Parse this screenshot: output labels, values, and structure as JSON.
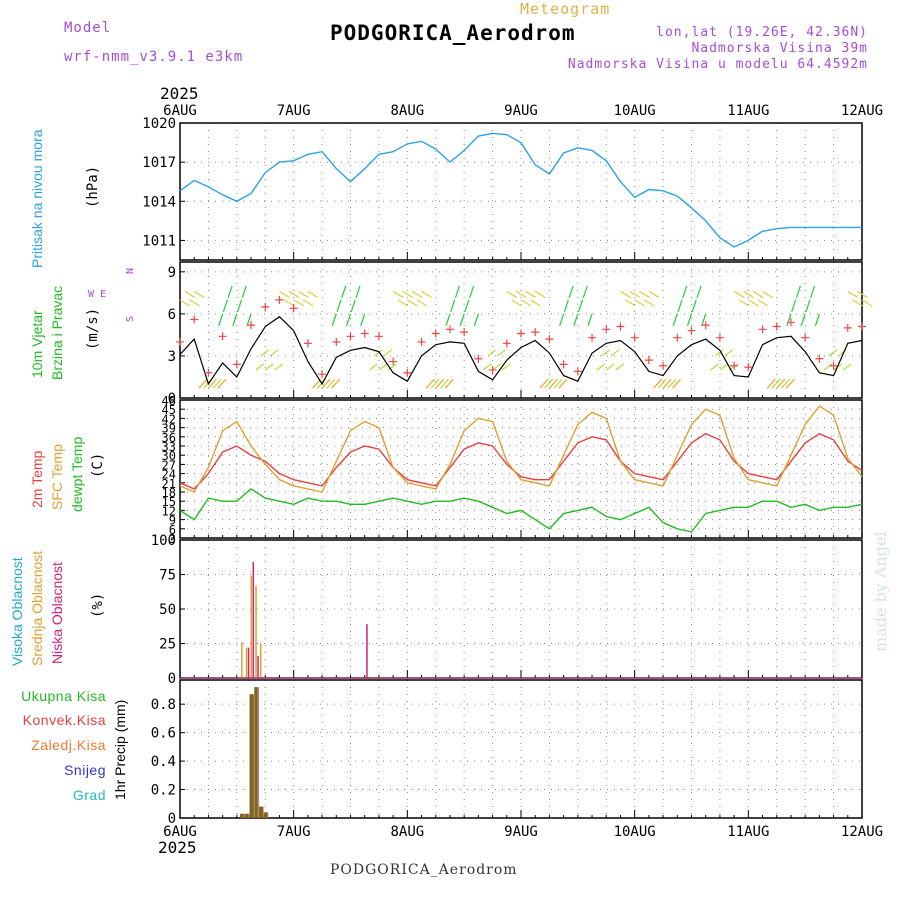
{
  "header": {
    "model_label": "Model",
    "model_name": "wrf-nmm_v3.9.1 e3km",
    "title": "Meteogram",
    "station": "PODGORICA_Aerodrom",
    "lonlat": "lon,lat (19.26E, 42.36N)",
    "elevation": "Nadmorska Visina 39m",
    "model_elevation": "Nadmorska Visina u modelu 64.4592m",
    "year": "2025",
    "footer_station": "PODGORICA_Aerodrom",
    "credit": "made by Angel"
  },
  "colors": {
    "pressure": "#2aa3e6",
    "wind_speed": "#000000",
    "wind_gust": "#f04545",
    "temp_2m": "#e84040",
    "temp_sfc": "#e0a030",
    "dewpt": "#22bb22",
    "cloud_high": "#22aacc",
    "cloud_mid": "#e0a030",
    "cloud_low": "#cc2277",
    "rain_total": "#228b22",
    "rain_conv": "#e84040",
    "rain_frozen": "#f07830",
    "snow": "#3333cc",
    "grad": "#22bbbb"
  },
  "chart_data": [
    {
      "type": "line",
      "panel": "pressure",
      "ylabel": "Pritisak na nivou mora",
      "unit": "(hPa)",
      "ylim": [
        1009.5,
        1020
      ],
      "yticks": [
        1011,
        1014,
        1017,
        1020
      ],
      "x_labels": [
        "6AUG",
        "7AUG",
        "8AUG",
        "9AUG",
        "10AUG",
        "11AUG",
        "12AUG"
      ],
      "x_hours": [
        0,
        3,
        6,
        9,
        12,
        15,
        18,
        21,
        24,
        27,
        30,
        33,
        36,
        39,
        42,
        45,
        48,
        51,
        54,
        57,
        60,
        63,
        66,
        69,
        72,
        75,
        78,
        81,
        84,
        87,
        90,
        93,
        96,
        99,
        102,
        105,
        108,
        111,
        114,
        117,
        120,
        123,
        126,
        129,
        132,
        135,
        138,
        141,
        144
      ],
      "values": [
        1014.8,
        1015.6,
        1015.1,
        1014.5,
        1014.0,
        1014.6,
        1016.2,
        1017.0,
        1017.1,
        1017.6,
        1017.8,
        1016.5,
        1015.5,
        1016.5,
        1017.6,
        1017.8,
        1018.4,
        1018.6,
        1018.0,
        1017.0,
        1017.9,
        1019.0,
        1019.2,
        1019.1,
        1018.5,
        1016.8,
        1016.1,
        1017.7,
        1018.1,
        1017.9,
        1017.1,
        1015.5,
        1014.3,
        1014.9,
        1014.8,
        1014.4,
        1013.5,
        1012.5,
        1011.2,
        1010.5,
        1011.0,
        1011.7,
        1011.9,
        1012.0,
        1012.0,
        1012.0,
        1012.0,
        1012.0,
        1012.0
      ]
    },
    {
      "type": "line",
      "panel": "wind",
      "ylabel": "10m Vjetar Brzina i Pravac",
      "unit": "(m/s)",
      "compass": "N, W E, S",
      "ylim": [
        0,
        9.7
      ],
      "yticks": [
        0,
        3,
        6,
        9
      ],
      "series": [
        {
          "name": "speed",
          "x_hours": [
            0,
            3,
            6,
            9,
            12,
            15,
            18,
            21,
            24,
            27,
            30,
            33,
            36,
            39,
            42,
            45,
            48,
            51,
            54,
            57,
            60,
            63,
            66,
            69,
            72,
            75,
            78,
            81,
            84,
            87,
            90,
            93,
            96,
            99,
            102,
            105,
            108,
            111,
            114,
            117,
            120,
            123,
            126,
            129,
            132,
            135,
            138,
            141,
            144
          ],
          "values": [
            3.1,
            4.2,
            1.0,
            2.5,
            1.5,
            3.5,
            5.1,
            5.8,
            4.8,
            2.6,
            1.0,
            2.9,
            3.4,
            3.6,
            3.3,
            1.8,
            1.2,
            3.0,
            3.8,
            4.0,
            3.9,
            1.9,
            1.3,
            2.7,
            3.6,
            4.1,
            3.2,
            1.6,
            1.2,
            3.2,
            3.9,
            4.1,
            3.3,
            1.9,
            1.6,
            3.0,
            3.8,
            4.2,
            3.4,
            1.6,
            1.5,
            3.8,
            4.3,
            4.4,
            3.3,
            1.8,
            1.6,
            3.9,
            4.1
          ]
        },
        {
          "name": "gust",
          "x_hours": [
            0,
            3,
            6,
            9,
            12,
            15,
            18,
            21,
            24,
            27,
            30,
            33,
            36,
            39,
            42,
            45,
            48,
            51,
            54,
            57,
            60,
            63,
            66,
            69,
            72,
            75,
            78,
            81,
            84,
            87,
            90,
            93,
            96,
            99,
            102,
            105,
            108,
            111,
            114,
            117,
            120,
            123,
            126,
            129,
            132,
            135,
            138,
            141,
            144
          ],
          "values": [
            4.0,
            5.6,
            1.8,
            4.4,
            2.4,
            5.2,
            6.5,
            7.0,
            6.4,
            3.9,
            1.7,
            4.0,
            4.4,
            4.6,
            4.4,
            2.6,
            1.8,
            4.0,
            4.6,
            4.9,
            4.7,
            2.8,
            2.0,
            3.9,
            4.6,
            4.7,
            4.2,
            2.4,
            1.9,
            4.3,
            4.9,
            5.1,
            4.3,
            2.7,
            2.3,
            4.3,
            4.8,
            5.2,
            4.3,
            2.3,
            2.2,
            4.9,
            5.1,
            5.4,
            4.3,
            2.8,
            2.3,
            5.0,
            5.1
          ]
        }
      ]
    },
    {
      "type": "line",
      "panel": "temperature",
      "ylabel": "2m Temp SFC Temp dewpt Temp",
      "unit": "(C)",
      "ylim": [
        3,
        48
      ],
      "yticks": [
        3,
        6,
        9,
        12,
        15,
        18,
        21,
        24,
        27,
        30,
        33,
        36,
        39,
        42,
        45,
        48
      ],
      "series": [
        {
          "name": "2m Temp",
          "x_hours": [
            0,
            3,
            6,
            9,
            12,
            15,
            18,
            21,
            24,
            27,
            30,
            33,
            36,
            39,
            42,
            45,
            48,
            51,
            54,
            57,
            60,
            63,
            66,
            69,
            72,
            75,
            78,
            81,
            84,
            87,
            90,
            93,
            96,
            99,
            102,
            105,
            108,
            111,
            114,
            117,
            120,
            123,
            126,
            129,
            132,
            135,
            138,
            141,
            144
          ],
          "values": [
            21,
            19,
            24,
            31,
            33,
            30,
            28,
            24,
            22,
            21,
            20,
            26,
            31,
            33,
            32,
            26,
            22,
            21,
            20,
            26,
            32,
            34,
            33,
            27,
            23,
            22,
            22,
            28,
            34,
            36,
            35,
            28,
            24,
            23,
            22,
            28,
            34,
            37,
            35,
            28,
            24,
            23,
            22,
            28,
            34,
            37,
            35,
            28,
            25
          ]
        },
        {
          "name": "SFC Temp",
          "x_hours": [
            0,
            3,
            6,
            9,
            12,
            15,
            18,
            21,
            24,
            27,
            30,
            33,
            36,
            39,
            42,
            45,
            48,
            51,
            54,
            57,
            60,
            63,
            66,
            69,
            72,
            75,
            78,
            81,
            84,
            87,
            90,
            93,
            96,
            99,
            102,
            105,
            108,
            111,
            114,
            117,
            120,
            123,
            126,
            129,
            132,
            135,
            138,
            141,
            144
          ],
          "values": [
            20,
            18,
            26,
            38,
            41,
            33,
            27,
            22,
            20,
            19,
            18,
            28,
            38,
            41,
            39,
            26,
            21,
            20,
            19,
            27,
            38,
            42,
            41,
            28,
            22,
            21,
            20,
            30,
            40,
            44,
            42,
            28,
            22,
            21,
            20,
            30,
            40,
            45,
            43,
            29,
            22,
            21,
            20,
            30,
            40,
            46,
            43,
            29,
            23
          ]
        },
        {
          "name": "dewpt Temp",
          "x_hours": [
            0,
            3,
            6,
            9,
            12,
            15,
            18,
            21,
            24,
            27,
            30,
            33,
            36,
            39,
            42,
            45,
            48,
            51,
            54,
            57,
            60,
            63,
            66,
            69,
            72,
            75,
            78,
            81,
            84,
            87,
            90,
            93,
            96,
            99,
            102,
            105,
            108,
            111,
            114,
            117,
            120,
            123,
            126,
            129,
            132,
            135,
            138,
            141,
            144
          ],
          "values": [
            12,
            9,
            16,
            15,
            15,
            19,
            16,
            15,
            14,
            16,
            15,
            15,
            14,
            14,
            15,
            16,
            15,
            14,
            15,
            15,
            16,
            15,
            13,
            11,
            12,
            9,
            6,
            11,
            12,
            13,
            10,
            9,
            11,
            13,
            8,
            6,
            5,
            11,
            12,
            13,
            13,
            15,
            15,
            13,
            14,
            12,
            13,
            13,
            14
          ]
        }
      ]
    },
    {
      "type": "bar",
      "panel": "clouds",
      "ylabel": "Visoka Oblacnost Srednja Oblacnost Niska Oblacnost",
      "unit": "(%)",
      "ylim": [
        0,
        100
      ],
      "yticks": [
        0,
        25,
        50,
        75,
        100
      ],
      "series": [
        {
          "name": "Visoka Oblacnost",
          "x_hours": [
            13,
            14,
            15,
            16,
            17,
            36,
            37,
            38,
            39,
            40,
            63,
            66
          ],
          "values": [
            2,
            3,
            4,
            3,
            2,
            2,
            3,
            2,
            2,
            2,
            1,
            1
          ]
        },
        {
          "name": "Srednja Oblacnost",
          "x_hours": [
            13,
            14,
            15,
            16,
            17,
            36,
            37,
            38,
            39,
            40,
            63,
            66
          ],
          "values": [
            26,
            22,
            74,
            67,
            25,
            7,
            8,
            7,
            6,
            8,
            2,
            1
          ]
        },
        {
          "name": "Niska Oblacnost",
          "x_hours": [
            13,
            14,
            15,
            16,
            17,
            36,
            37,
            38,
            39,
            40,
            63,
            66
          ],
          "values": [
            4,
            22,
            84,
            16,
            5,
            3,
            8,
            5,
            39,
            3,
            5,
            2
          ]
        }
      ]
    },
    {
      "type": "bar",
      "panel": "precipitation",
      "ylabel": "1hr Precip (mm)",
      "ylim": [
        0,
        0.97
      ],
      "yticks": [
        0,
        0.2,
        0.4,
        0.6,
        0.8
      ],
      "yticklabels": [
        "0",
        "0.2",
        "0.4",
        "0.6",
        "0.8"
      ],
      "series": [
        {
          "name": "Ukupna Kisa",
          "x_hours": [
            13,
            14,
            15,
            16,
            17,
            18
          ],
          "values": [
            0.03,
            0.03,
            0.87,
            0.92,
            0.08,
            0.04
          ]
        },
        {
          "name": "Konvek.Kisa",
          "x_hours": [
            13,
            14,
            15,
            16,
            17,
            18
          ],
          "values": [
            0.03,
            0.03,
            0.87,
            0.92,
            0.08,
            0.04
          ]
        }
      ],
      "legend": [
        "Ukupna Kisa",
        "Konvek.Kisa",
        "Zaledj.Kisa",
        "Snijeg",
        "Grad"
      ]
    }
  ]
}
